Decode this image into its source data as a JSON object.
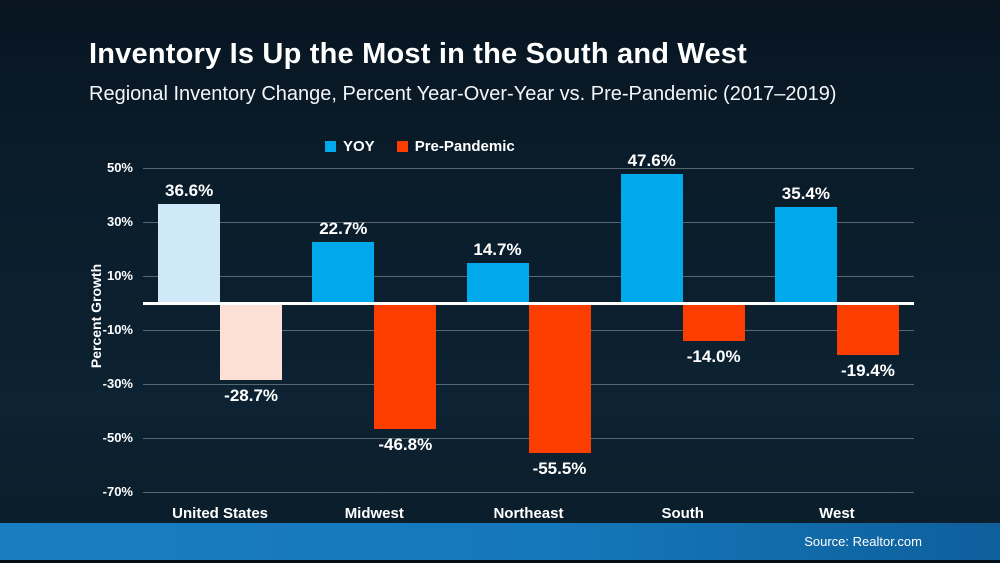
{
  "header": {
    "title": "Inventory Is Up the Most in the South and West",
    "subtitle": "Regional Inventory Change, Percent Year-Over-Year vs. Pre-Pandemic (2017–2019)"
  },
  "footer": {
    "source": "Source: Realtor.com"
  },
  "colors": {
    "background": "#0a1c2a",
    "yoy_blue": "#00a8ec",
    "pre_pandemic_orange": "#fb3d00",
    "yoy_highlight_light_blue": "#cfe9f8",
    "pre_pandemic_highlight_light_peach": "#fcdfd5",
    "gridline": "#9eafba",
    "zero_line": "#ffffff",
    "footer_bar_left": "#1a7dc0",
    "footer_bar_right": "#0e5f9c",
    "text": "#ffffff"
  },
  "chart_data": {
    "type": "bar",
    "title": "Inventory Is Up the Most in the South and West",
    "subtitle": "Regional Inventory Change, Percent Year-Over-Year vs. Pre-Pandemic (2017–2019)",
    "categories": [
      "United States",
      "Midwest",
      "Northeast",
      "South",
      "West"
    ],
    "series": [
      {
        "name": "YOY",
        "color": "#00a8ec",
        "highlight_color": "#cfe9f8",
        "values": [
          36.6,
          22.7,
          14.7,
          47.6,
          35.4
        ],
        "labels": [
          "36.6%",
          "22.7%",
          "14.7%",
          "47.6%",
          "35.4%"
        ]
      },
      {
        "name": "Pre-Pandemic",
        "color": "#fb3d00",
        "highlight_color": "#fcdfd5",
        "values": [
          -28.7,
          -46.8,
          -55.5,
          -14.0,
          -19.4
        ],
        "labels": [
          "-28.7%",
          "-46.8%",
          "-55.5%",
          "-14.0%",
          "-19.4%"
        ]
      }
    ],
    "highlight_category": "United States",
    "ylabel": "Percent Growth",
    "xlabel": "",
    "yticks": [
      50,
      30,
      10,
      -10,
      -30,
      -50,
      -70
    ],
    "ytick_labels": [
      "50%",
      "30%",
      "10%",
      "-10%",
      "-30%",
      "-50%",
      "-70%"
    ],
    "ylim": [
      -75,
      57
    ],
    "grid": true,
    "legend_position": "top"
  }
}
